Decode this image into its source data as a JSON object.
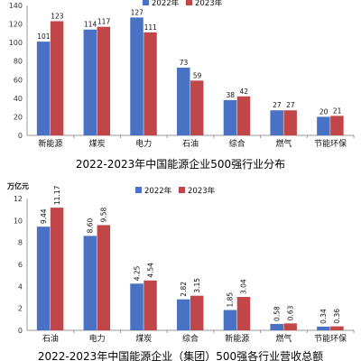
{
  "colors": {
    "y2022": "#4a72c4",
    "y2023": "#c0464a",
    "grid": "#dddddd",
    "axis": "#999999"
  },
  "chart_data": [
    {
      "type": "bar",
      "title": "2022-2023年中国能源企业500强行业分布",
      "ylabel": "",
      "unit_label": "",
      "categories": [
        "新能源",
        "煤炭",
        "电力",
        "石油",
        "综合",
        "燃气",
        "节能环保"
      ],
      "series": [
        {
          "name": "2022年",
          "values": [
            101,
            114,
            127,
            73,
            38,
            27,
            20
          ]
        },
        {
          "name": "2023年",
          "values": [
            123,
            117,
            111,
            59,
            42,
            27,
            21
          ]
        }
      ],
      "ylim": [
        0,
        140
      ],
      "yticks": [
        "0",
        "20",
        "40",
        "60",
        "80",
        "100",
        "120",
        "140"
      ],
      "grid": false,
      "legend": "top"
    },
    {
      "type": "bar",
      "title": "2022-2023年中国能源企业（集团）500强各行业营收总额",
      "unit_label": "万亿元",
      "categories": [
        "石油",
        "电力",
        "煤炭",
        "综合",
        "新能源",
        "燃气",
        "节能环保"
      ],
      "series": [
        {
          "name": "2022年",
          "values": [
            9.44,
            8.6,
            4.25,
            2.82,
            1.85,
            0.58,
            0.34
          ]
        },
        {
          "name": "2023年",
          "values": [
            11.17,
            9.58,
            4.54,
            3.15,
            3.04,
            0.63,
            0.36
          ]
        }
      ],
      "value_labels": [
        [
          "9.44",
          "8.60",
          "4.25",
          "2.82",
          "1.85",
          "0.58",
          "0.34"
        ],
        [
          "11.17",
          "9.58",
          "4.54",
          "3.15",
          "3.04",
          "0.63",
          "0.36"
        ]
      ],
      "ylim": [
        0,
        12
      ],
      "yticks": [
        "0",
        "2",
        "4",
        "6",
        "8",
        "10",
        "12"
      ],
      "grid": false,
      "legend": "top"
    }
  ]
}
